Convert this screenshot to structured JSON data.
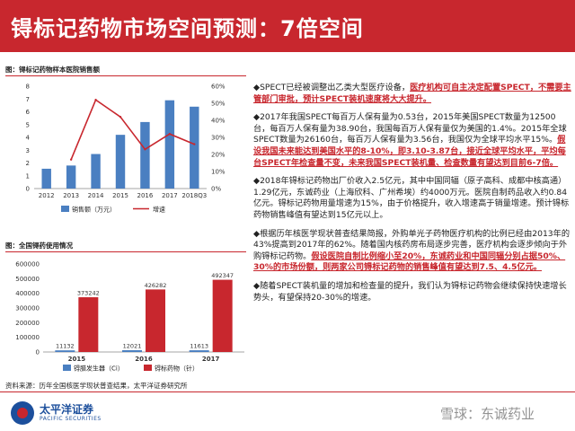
{
  "title": "锝标记药物市场空间预测：7倍空间",
  "figure1": {
    "caption": "图：锝标记药物样本医院销售额"
  },
  "figure2": {
    "caption": "图：全国锝药使用情况"
  },
  "chart_data": [
    {
      "type": "bar",
      "categories": [
        "2012",
        "2013",
        "2014",
        "2015",
        "2016",
        "2017",
        "2018Q3"
      ],
      "series": [
        {
          "name": "销售额（万元）",
          "type": "bar",
          "values": [
            1.55,
            1.8,
            2.7,
            4.2,
            5.2,
            6.9,
            6.4
          ]
        },
        {
          "name": "增速",
          "type": "line",
          "values": [
            null,
            17,
            52,
            42,
            23,
            32,
            26
          ]
        }
      ],
      "y_left_ticks": [
        "0",
        "1",
        "2",
        "3",
        "4",
        "5",
        "6",
        "7",
        "8"
      ],
      "y_right_ticks": [
        "0%",
        "10%",
        "20%",
        "30%",
        "40%",
        "50%",
        "60%"
      ],
      "ylim_left": [
        0,
        8
      ],
      "ylim_right": [
        0,
        60
      ],
      "legend_position": "bottom"
    },
    {
      "type": "bar",
      "categories": [
        "2015",
        "2016",
        "2017"
      ],
      "series": [
        {
          "name": "锝腊发生器（Ci）",
          "values": [
            11132,
            12021,
            11613
          ]
        },
        {
          "name": "锝标药物（针）",
          "values": [
            373242,
            426282,
            492347
          ]
        }
      ],
      "y_ticks": [
        "0",
        "100000",
        "200000",
        "300000",
        "400000",
        "500000",
        "600000"
      ],
      "ylim": [
        0,
        600000
      ],
      "legend_position": "bottom"
    }
  ],
  "paragraphs": [
    {
      "mark": "◆",
      "segments": [
        {
          "t": "SPECT已经被调整出乙类大型医疗设备，"
        },
        {
          "t": "医疗机构可自主决定配置SPECT，不需要主管部门审批，预计SPECT装机速度将大大提升。",
          "hl": true
        }
      ]
    },
    {
      "mark": "◆",
      "segments": [
        {
          "t": "2017年我国SPECT每百万人保有量为0.53台，2015年美国SPECT数量为12500台，每百万人保有量为38.90台，我国每百万人保有量仅为美国的1.4%。2015年全球SPECT数量为26160台，每百万人保有量为3.56台，我国仅为全球平均水平15%。"
        },
        {
          "t": "假设我国未来能达到美国水平的8-10%，即3.10-3.87台，接近全球平均水平，平均每台SPECT年检查量不变，未来我国SPECT装机量、检查数量有望达到目前6-7倍。",
          "hl": true
        }
      ]
    },
    {
      "mark": "◆",
      "segments": [
        {
          "t": "2018年锝标记药物出厂价收入2.5亿元，其中中国同辐（原子高科、成都中核高通）1.29亿元，东诚药业（上海欣科、广州希埃）约4000万元。医院自制药品收入约0.84亿元。锝标记药物用量增速为15%，由于价格提升，收入增速高于销量增速。预计锝标药物销售峰值有望达到15亿元以上。"
        }
      ]
    },
    {
      "mark": "◆",
      "segments": [
        {
          "t": "根据历年核医学现状普查结果简报，外购单光子药物医疗机构的比例已经由2013年的43%提高到2017年的62%。随着国内核药房布局逐步完善，医疗机构会逐步倾向于外购锝标记药物。"
        },
        {
          "t": "假设医院自制比例缩小至20%，东诚药业和中国同辐分别占据50%、30%的市场份额，则两家公司锝标记药物的销售峰值有望达到7.5、4.5亿元。",
          "hl": true
        }
      ]
    },
    {
      "mark": "◆",
      "segments": [
        {
          "t": "随着SPECT装机量的增加和检查量的提升，我们认为锝标记药物会继续保持快速增长势头，有望保持20-30%的增速。"
        }
      ]
    }
  ],
  "source": "资料来源：历年全国核医学现状普查结果，太平洋证券研究所",
  "logo": {
    "name": "太平洋证券",
    "name_en": "PACIFIC SECURITIES"
  },
  "watermark": "雪球：东诚药业"
}
